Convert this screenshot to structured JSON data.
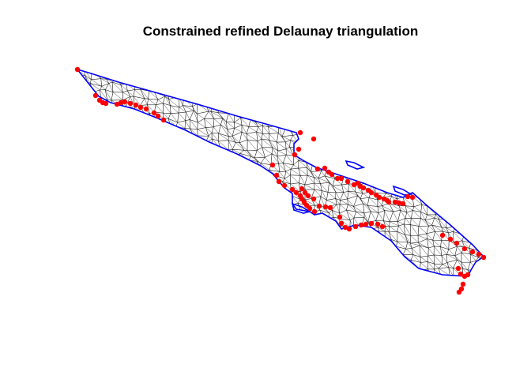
{
  "title": "Constrained refined Delaunay triangulation",
  "colors": {
    "background": "#ffffff",
    "mesh": "#000000",
    "boundary": "#0000ff",
    "points": "#ff0000"
  },
  "legend": "none",
  "axes": "none",
  "chart_data": {
    "type": "diagram",
    "title": "Constrained refined Delaunay triangulation",
    "mesh": "triangulated polygon",
    "boundary_color": "blue",
    "point_color": "red"
  }
}
